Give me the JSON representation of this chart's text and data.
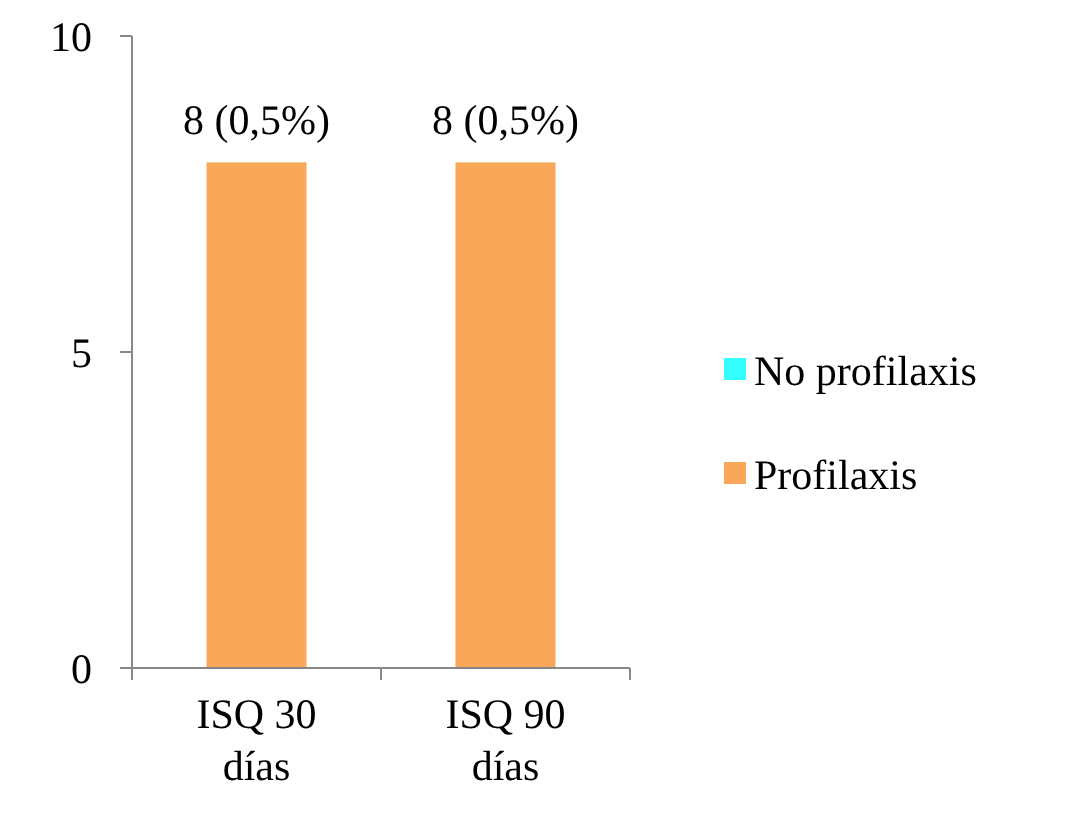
{
  "chart_data": {
    "type": "bar",
    "stacked": true,
    "categories": [
      "ISQ 30 días",
      "ISQ 90 días"
    ],
    "series": [
      {
        "name": "No profilaxis",
        "color": "#33ffff",
        "values": [
          0,
          0
        ]
      },
      {
        "name": "Profilaxis",
        "color": "#f9a85a",
        "values": [
          8,
          8
        ],
        "value_labels": [
          "8 (0,5%)",
          "8 (0,5%)"
        ]
      }
    ],
    "ylim": [
      0,
      10
    ],
    "yticks": [
      0,
      5,
      10
    ],
    "grid": false,
    "legend": "right"
  }
}
